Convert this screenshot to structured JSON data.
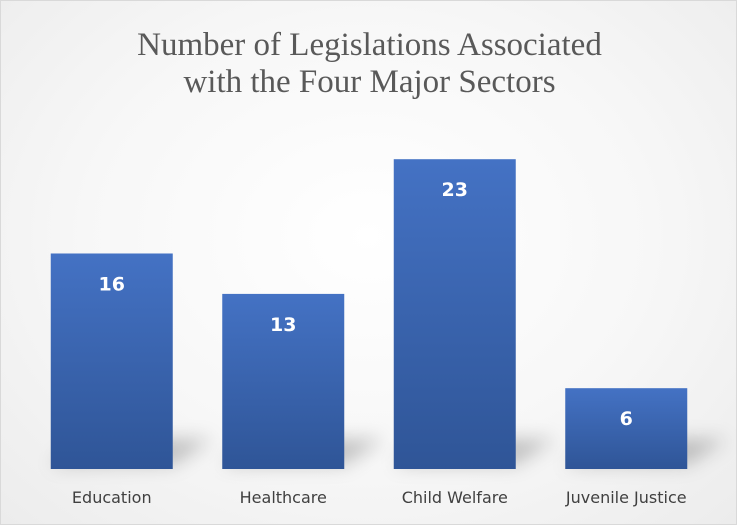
{
  "chart_data": {
    "type": "bar",
    "title": "Number of Legislations Associated with the Four Major Sectors",
    "title_lines": [
      "Number of Legislations Associated",
      "with the Four Major Sectors"
    ],
    "categories": [
      "Education",
      "Healthcare",
      "Child Welfare",
      "Juvenile Justice"
    ],
    "values": [
      16,
      13,
      23,
      6
    ],
    "xlabel": "",
    "ylabel": "",
    "ylim": [
      0,
      24.5
    ],
    "grid": false,
    "legend": "none",
    "data_labels": true,
    "bar_color": "#4472C4",
    "bar_color_dark": "#2f5597",
    "label_color": "#ffffff",
    "axis_text_color": "#404040"
  }
}
